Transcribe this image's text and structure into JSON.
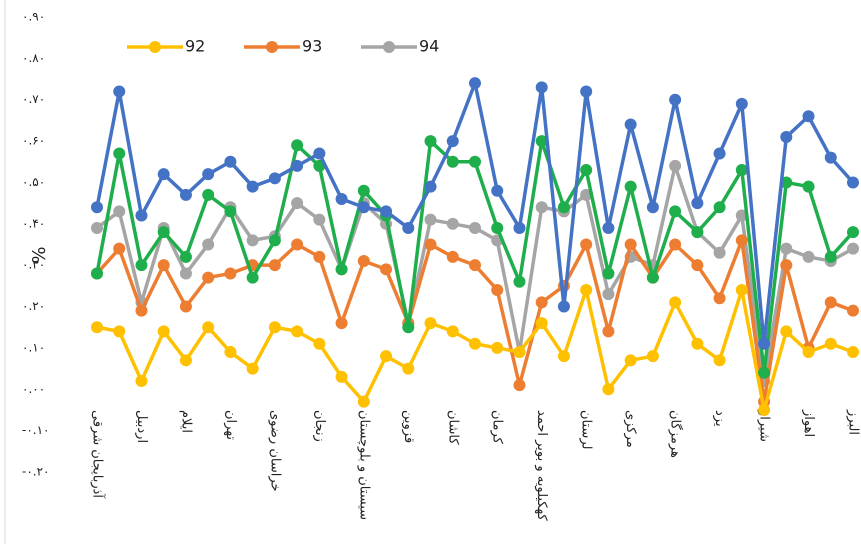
{
  "chart_data": {
    "type": "line",
    "y_label": "%",
    "categories": [
      "آذربایجان شرقی",
      null,
      "اردبیل",
      null,
      "ایلام",
      null,
      "تهران",
      null,
      "خراسان رضوی",
      null,
      "زنجان",
      null,
      "سیستان و بلوچستان",
      null,
      "قزوین",
      null,
      "کاشان",
      null,
      "کرمان",
      null,
      "کهکیلویه و بویر احمد",
      null,
      "لرستان",
      null,
      "مرکزی",
      null,
      "هرمزگان",
      null,
      "یزد",
      null,
      "شیراز",
      null,
      "اهواز",
      null,
      "البرز"
    ],
    "series": [
      {
        "name": "94",
        "color": "#a5a5a5",
        "values": [
          0.39,
          0.43,
          0.21,
          0.39,
          0.28,
          0.35,
          0.44,
          0.36,
          0.37,
          0.45,
          0.41,
          0.29,
          0.45,
          0.4,
          0.16,
          0.41,
          0.4,
          0.39,
          0.36,
          0.09,
          0.44,
          0.43,
          0.47,
          0.23,
          0.32,
          0.3,
          0.54,
          0.38,
          0.33,
          0.42,
          0.02,
          0.34,
          0.32,
          0.31,
          0.34
        ]
      },
      {
        "name": "93",
        "color": "#ed7d31",
        "values": [
          0.28,
          0.34,
          0.19,
          0.3,
          0.2,
          0.27,
          0.28,
          0.3,
          0.3,
          0.35,
          0.32,
          0.16,
          0.31,
          0.29,
          0.16,
          0.35,
          0.32,
          0.3,
          0.24,
          0.01,
          0.21,
          0.25,
          0.35,
          0.14,
          0.35,
          0.27,
          0.35,
          0.3,
          0.22,
          0.36,
          -0.03,
          0.3,
          0.1,
          0.21,
          0.19
        ]
      },
      {
        "name": "92",
        "color": "#ffc000",
        "values": [
          0.15,
          0.14,
          0.02,
          0.14,
          0.07,
          0.15,
          0.09,
          0.05,
          0.15,
          0.14,
          0.11,
          0.03,
          -0.03,
          0.08,
          0.05,
          0.16,
          0.14,
          0.11,
          0.1,
          0.09,
          0.16,
          0.08,
          0.24,
          0.0,
          0.07,
          0.08,
          0.21,
          0.11,
          0.07,
          0.24,
          -0.05,
          0.14,
          0.09,
          0.11,
          0.09
        ]
      },
      {
        "color": "#1fae4c",
        "values": [
          0.28,
          0.57,
          0.3,
          0.38,
          0.32,
          0.47,
          0.43,
          0.27,
          0.36,
          0.59,
          0.54,
          0.29,
          0.48,
          0.42,
          0.15,
          0.6,
          0.55,
          0.55,
          0.39,
          0.26,
          0.6,
          0.44,
          0.53,
          0.28,
          0.49,
          0.27,
          0.43,
          0.38,
          0.44,
          0.53,
          0.04,
          0.5,
          0.49,
          0.32,
          0.38
        ]
      },
      {
        "color": "#4472c4",
        "values": [
          0.44,
          0.72,
          0.42,
          0.52,
          0.47,
          0.52,
          0.55,
          0.49,
          0.51,
          0.54,
          0.57,
          0.46,
          0.44,
          0.43,
          0.39,
          0.49,
          0.6,
          0.74,
          0.48,
          0.39,
          0.73,
          0.2,
          0.72,
          0.39,
          0.64,
          0.44,
          0.7,
          0.45,
          0.57,
          0.69,
          0.11,
          0.61,
          0.66,
          0.56,
          0.5
        ]
      }
    ],
    "ylim": [
      -0.2,
      0.9
    ],
    "yticks": [
      {
        "value": 0.9,
        "label": "۰.۹۰"
      },
      {
        "value": 0.8,
        "label": "۰.۸۰"
      },
      {
        "value": 0.7,
        "label": "۰.۷۰"
      },
      {
        "value": 0.6,
        "label": "۰.۶۰"
      },
      {
        "value": 0.5,
        "label": "۰.۵۰"
      },
      {
        "value": 0.4,
        "label": "۰.۴۰"
      },
      {
        "value": 0.3,
        "label": "۰.۳۰"
      },
      {
        "value": 0.2,
        "label": "۰.۲۰"
      },
      {
        "value": 0.1,
        "label": "۰.۱۰"
      },
      {
        "value": 0,
        "label": "۰.۰۰"
      },
      {
        "value": -0.1,
        "label": "-۰.۱۰"
      },
      {
        "value": -0.2,
        "label": "-۰.۲۰"
      }
    ],
    "grid": false,
    "legend": "top"
  }
}
